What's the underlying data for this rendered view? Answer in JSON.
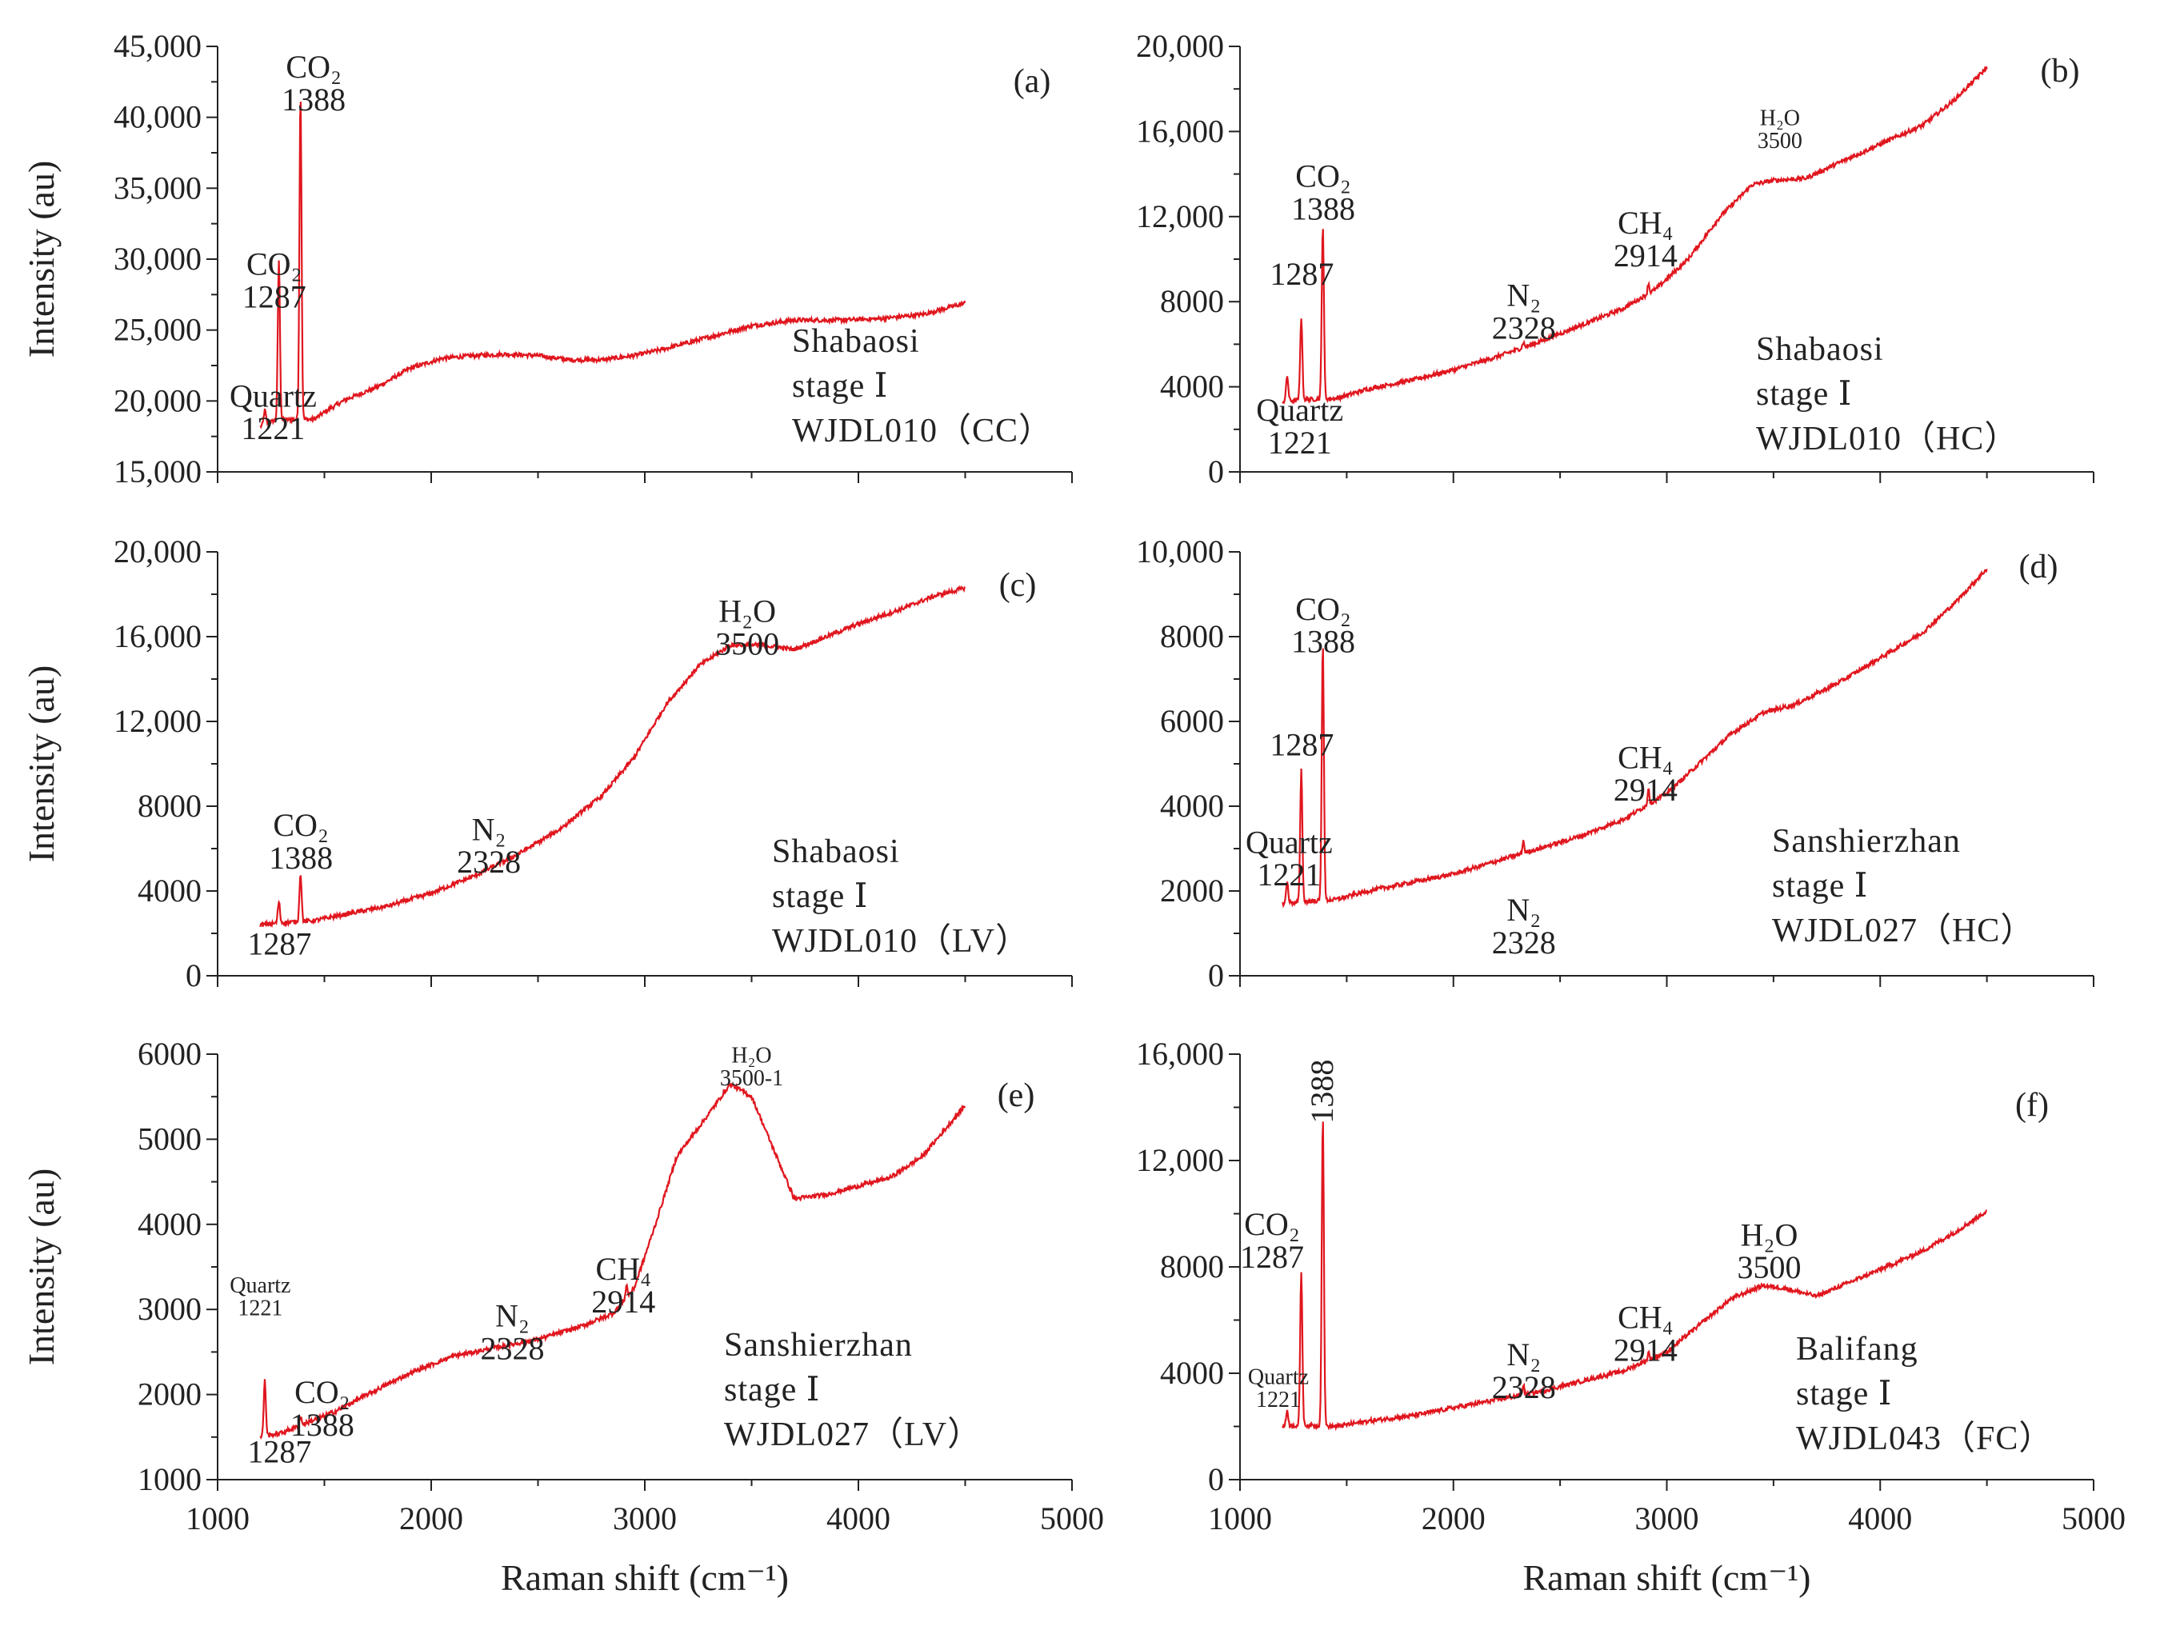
{
  "colors": {
    "spectrum": "#e0161e",
    "axis": "#222222",
    "text": "#222222"
  },
  "chart_data": [
    {
      "panel": "(a)",
      "type": "line",
      "xlim": [
        1000,
        5000
      ],
      "ylim": [
        15000,
        45000
      ],
      "yticks": [
        15000,
        20000,
        25000,
        30000,
        35000,
        40000,
        45000
      ],
      "yticklabels": [
        "15,000",
        "20,000",
        "25,000",
        "30,000",
        "35,000",
        "40,000",
        "45,000"
      ],
      "xticks": [
        1000,
        2000,
        3000,
        4000,
        5000
      ],
      "xticklabels": [],
      "ylabel": "Intensity (au)",
      "xlabel": "",
      "x_range": [
        1200,
        4500
      ],
      "baseline": [
        [
          1200,
          18200
        ],
        [
          1260,
          18600
        ],
        [
          1350,
          18700
        ],
        [
          1450,
          18700
        ],
        [
          1520,
          19400
        ],
        [
          1600,
          20100
        ],
        [
          1750,
          21000
        ],
        [
          1900,
          22300
        ],
        [
          2050,
          23000
        ],
        [
          2200,
          23200
        ],
        [
          2350,
          23300
        ],
        [
          2500,
          23200
        ],
        [
          2650,
          22900
        ],
        [
          2800,
          22900
        ],
        [
          2950,
          23200
        ],
        [
          3100,
          23700
        ],
        [
          3300,
          24500
        ],
        [
          3500,
          25300
        ],
        [
          3700,
          25700
        ],
        [
          3900,
          25700
        ],
        [
          4100,
          25800
        ],
        [
          4300,
          26100
        ],
        [
          4500,
          26900
        ]
      ],
      "peaks": [
        [
          1221,
          1000
        ],
        [
          1287,
          11300
        ],
        [
          1388,
          23000
        ]
      ],
      "annotations": [
        {
          "lines": [
            "Quartz",
            "1221"
          ],
          "at": [
            1260,
            19600
          ]
        },
        {
          "lines": [
            "CO₂",
            "1287"
          ],
          "at": [
            1265,
            28900
          ]
        },
        {
          "lines": [
            "CO₂",
            "1388"
          ],
          "at": [
            1450,
            42800
          ]
        }
      ],
      "sample": [
        "Shabaosi",
        "stage Ⅰ",
        "WJDL010（CC）"
      ]
    },
    {
      "panel": "(b)",
      "type": "line",
      "xlim": [
        1000,
        5000
      ],
      "ylim": [
        0,
        20000
      ],
      "yticks": [
        0,
        4000,
        8000,
        12000,
        16000,
        20000
      ],
      "yticklabels": [
        "0",
        "4000",
        "8000",
        "12,000",
        "16,000",
        "20,000"
      ],
      "xticks": [
        1000,
        2000,
        3000,
        4000,
        5000
      ],
      "xticklabels": [],
      "ylabel": "",
      "xlabel": "",
      "x_range": [
        1200,
        4500
      ],
      "baseline": [
        [
          1200,
          3300
        ],
        [
          1300,
          3400
        ],
        [
          1450,
          3450
        ],
        [
          1600,
          3900
        ],
        [
          1800,
          4300
        ],
        [
          2000,
          4800
        ],
        [
          2200,
          5400
        ],
        [
          2400,
          6100
        ],
        [
          2600,
          6900
        ],
        [
          2800,
          7700
        ],
        [
          2950,
          8600
        ],
        [
          3100,
          10000
        ],
        [
          3250,
          12000
        ],
        [
          3400,
          13500
        ],
        [
          3500,
          13700
        ],
        [
          3650,
          13800
        ],
        [
          3800,
          14500
        ],
        [
          4000,
          15400
        ],
        [
          4200,
          16300
        ],
        [
          4350,
          17500
        ],
        [
          4500,
          19000
        ]
      ],
      "peaks": [
        [
          1221,
          1200
        ],
        [
          1287,
          3900
        ],
        [
          1388,
          8200
        ],
        [
          2328,
          250
        ],
        [
          2914,
          500
        ]
      ],
      "annotations": [
        {
          "lines": [
            "Quartz",
            "1221"
          ],
          "at": [
            1280,
            2400
          ]
        },
        {
          "lines": [
            "1287"
          ],
          "at": [
            1290,
            8800
          ]
        },
        {
          "lines": [
            "CO₂",
            "1388"
          ],
          "at": [
            1390,
            13400
          ]
        },
        {
          "lines": [
            "N₂",
            "2328"
          ],
          "at": [
            2330,
            7800
          ]
        },
        {
          "lines": [
            "CH₄",
            "2914"
          ],
          "at": [
            2900,
            11200
          ]
        },
        {
          "lines": [
            "H₂O",
            "3500"
          ],
          "at": [
            3530,
            16300
          ],
          "small": true
        }
      ],
      "sample": [
        "Shabaosi",
        "stage Ⅰ",
        "WJDL010（HC）"
      ]
    },
    {
      "panel": "(c)",
      "type": "line",
      "xlim": [
        1000,
        5000
      ],
      "ylim": [
        0,
        20000
      ],
      "yticks": [
        0,
        4000,
        8000,
        12000,
        16000,
        20000
      ],
      "yticklabels": [
        "0",
        "4000",
        "8000",
        "12,000",
        "16,000",
        "20,000"
      ],
      "xticks": [
        1000,
        2000,
        3000,
        4000,
        5000
      ],
      "xticklabels": [],
      "ylabel": "Intensity (au)",
      "xlabel": "",
      "x_range": [
        1200,
        4500
      ],
      "baseline": [
        [
          1200,
          2400
        ],
        [
          1300,
          2500
        ],
        [
          1450,
          2600
        ],
        [
          1600,
          2900
        ],
        [
          1800,
          3300
        ],
        [
          2000,
          3900
        ],
        [
          2200,
          4700
        ],
        [
          2400,
          5700
        ],
        [
          2600,
          6900
        ],
        [
          2800,
          8500
        ],
        [
          2950,
          10300
        ],
        [
          3100,
          12800
        ],
        [
          3250,
          14600
        ],
        [
          3400,
          15600
        ],
        [
          3550,
          15600
        ],
        [
          3700,
          15400
        ],
        [
          3850,
          16000
        ],
        [
          4000,
          16600
        ],
        [
          4200,
          17300
        ],
        [
          4350,
          17900
        ],
        [
          4500,
          18300
        ]
      ],
      "peaks": [
        [
          1287,
          1000
        ],
        [
          1388,
          2300
        ]
      ],
      "annotations": [
        {
          "lines": [
            "1287"
          ],
          "at": [
            1290,
            1000
          ]
        },
        {
          "lines": [
            "CO₂",
            "1388"
          ],
          "at": [
            1390,
            6600
          ]
        },
        {
          "lines": [
            "N₂",
            "2328"
          ],
          "at": [
            2270,
            6400
          ]
        },
        {
          "lines": [
            "H₂O",
            "3500"
          ],
          "at": [
            3480,
            16700
          ]
        }
      ],
      "sample": [
        "Shabaosi",
        "stage Ⅰ",
        "WJDL010（LV）"
      ]
    },
    {
      "panel": "(d)",
      "type": "line",
      "xlim": [
        1000,
        5000
      ],
      "ylim": [
        0,
        10000
      ],
      "yticks": [
        0,
        2000,
        4000,
        6000,
        8000,
        10000
      ],
      "yticklabels": [
        "0",
        "2000",
        "4000",
        "6000",
        "8000",
        "10,000"
      ],
      "xticks": [
        1000,
        2000,
        3000,
        4000,
        5000
      ],
      "xticklabels": [],
      "ylabel": "",
      "xlabel": "",
      "x_range": [
        1200,
        4500
      ],
      "baseline": [
        [
          1200,
          1700
        ],
        [
          1300,
          1750
        ],
        [
          1450,
          1800
        ],
        [
          1600,
          2000
        ],
        [
          1800,
          2200
        ],
        [
          2000,
          2400
        ],
        [
          2200,
          2700
        ],
        [
          2400,
          3000
        ],
        [
          2600,
          3300
        ],
        [
          2800,
          3700
        ],
        [
          3000,
          4300
        ],
        [
          3150,
          5000
        ],
        [
          3300,
          5700
        ],
        [
          3450,
          6200
        ],
        [
          3600,
          6400
        ],
        [
          3800,
          6900
        ],
        [
          4000,
          7500
        ],
        [
          4200,
          8100
        ],
        [
          4350,
          8800
        ],
        [
          4500,
          9600
        ]
      ],
      "peaks": [
        [
          1221,
          500
        ],
        [
          1287,
          3100
        ],
        [
          1388,
          6100
        ],
        [
          2328,
          300
        ],
        [
          2914,
          400
        ]
      ],
      "annotations": [
        {
          "lines": [
            "Quartz",
            "1221"
          ],
          "at": [
            1230,
            2900
          ]
        },
        {
          "lines": [
            "1287"
          ],
          "at": [
            1290,
            5200
          ]
        },
        {
          "lines": [
            "CO₂",
            "1388"
          ],
          "at": [
            1390,
            8400
          ]
        },
        {
          "lines": [
            "N₂",
            "2328"
          ],
          "at": [
            2330,
            1300
          ]
        },
        {
          "lines": [
            "CH₄",
            "2914"
          ],
          "at": [
            2900,
            4900
          ]
        }
      ],
      "sample": [
        "Sanshierzhan",
        "stage Ⅰ",
        "WJDL027（HC）"
      ]
    },
    {
      "panel": "(e)",
      "type": "line",
      "xlim": [
        1000,
        5000
      ],
      "ylim": [
        1000,
        6000
      ],
      "yticks": [
        1000,
        2000,
        3000,
        4000,
        5000,
        6000
      ],
      "yticklabels": [
        "1000",
        "2000",
        "3000",
        "4000",
        "5000",
        "6000"
      ],
      "xticks": [
        1000,
        2000,
        3000,
        4000,
        5000
      ],
      "xticklabels": [
        "1000",
        "2000",
        "3000",
        "4000",
        "5000"
      ],
      "ylabel": "Intensity (au)",
      "xlabel": "Raman shift (cm⁻¹)",
      "x_range": [
        1200,
        4500
      ],
      "baseline": [
        [
          1200,
          1500
        ],
        [
          1300,
          1550
        ],
        [
          1400,
          1650
        ],
        [
          1550,
          1800
        ],
        [
          1700,
          2000
        ],
        [
          1900,
          2250
        ],
        [
          2100,
          2450
        ],
        [
          2300,
          2550
        ],
        [
          2500,
          2650
        ],
        [
          2700,
          2800
        ],
        [
          2850,
          2950
        ],
        [
          2950,
          3250
        ],
        [
          3050,
          4000
        ],
        [
          3150,
          4800
        ],
        [
          3300,
          5300
        ],
        [
          3400,
          5650
        ],
        [
          3500,
          5500
        ],
        [
          3600,
          4900
        ],
        [
          3700,
          4300
        ],
        [
          3850,
          4350
        ],
        [
          4000,
          4450
        ],
        [
          4150,
          4550
        ],
        [
          4300,
          4800
        ],
        [
          4500,
          5400
        ]
      ],
      "peaks": [
        [
          1221,
          650
        ],
        [
          1388,
          100
        ],
        [
          2914,
          150
        ]
      ],
      "annotations": [
        {
          "lines": [
            "Quartz",
            "1221"
          ],
          "at": [
            1200,
            3200
          ],
          "small": true
        },
        {
          "lines": [
            "CO₂",
            "1388"
          ],
          "at": [
            1490,
            1900
          ]
        },
        {
          "lines": [
            "1287"
          ],
          "at": [
            1290,
            1200
          ]
        },
        {
          "lines": [
            "N₂",
            "2328"
          ],
          "at": [
            2380,
            2800
          ]
        },
        {
          "lines": [
            "CH₄",
            "2914"
          ],
          "at": [
            2900,
            3350
          ]
        },
        {
          "lines": [
            "H₂O",
            "3500-1"
          ],
          "at": [
            3500,
            5900
          ],
          "small": true
        }
      ],
      "sample": [
        "Sanshierzhan",
        "stage Ⅰ",
        "WJDL027（LV）"
      ]
    },
    {
      "panel": "(f)",
      "type": "line",
      "xlim": [
        1000,
        5000
      ],
      "ylim": [
        0,
        16000
      ],
      "yticks": [
        0,
        4000,
        8000,
        12000,
        16000
      ],
      "yticklabels": [
        "0",
        "4000",
        "8000",
        "12,000",
        "16,000"
      ],
      "xticks": [
        1000,
        2000,
        3000,
        4000,
        5000
      ],
      "xticklabels": [
        "1000",
        "2000",
        "3000",
        "4000",
        "5000"
      ],
      "ylabel": "",
      "xlabel": "Raman shift (cm⁻¹)",
      "x_range": [
        1200,
        4500
      ],
      "baseline": [
        [
          1200,
          2000
        ],
        [
          1300,
          2050
        ],
        [
          1450,
          2000
        ],
        [
          1600,
          2200
        ],
        [
          1800,
          2400
        ],
        [
          2000,
          2700
        ],
        [
          2200,
          3000
        ],
        [
          2400,
          3300
        ],
        [
          2600,
          3700
        ],
        [
          2800,
          4100
        ],
        [
          3000,
          4800
        ],
        [
          3150,
          5800
        ],
        [
          3300,
          6800
        ],
        [
          3450,
          7300
        ],
        [
          3550,
          7200
        ],
        [
          3700,
          6900
        ],
        [
          3850,
          7400
        ],
        [
          4000,
          7900
        ],
        [
          4200,
          8600
        ],
        [
          4350,
          9300
        ],
        [
          4500,
          10100
        ]
      ],
      "peaks": [
        [
          1221,
          600
        ],
        [
          1287,
          5800
        ],
        [
          1388,
          11700
        ],
        [
          2328,
          400
        ],
        [
          2914,
          300
        ]
      ],
      "annotations": [
        {
          "lines": [
            "Quartz",
            "1221"
          ],
          "at": [
            1180,
            3600
          ],
          "small": true
        },
        {
          "lines": [
            "CO₂",
            "1287"
          ],
          "at": [
            1150,
            9200
          ]
        },
        {
          "lines": [
            "1388"
          ],
          "at": [
            1390,
            15800
          ],
          "rotate": true
        },
        {
          "lines": [
            "N₂",
            "2328"
          ],
          "at": [
            2330,
            4300
          ]
        },
        {
          "lines": [
            "CH₄",
            "2914"
          ],
          "at": [
            2900,
            5700
          ]
        },
        {
          "lines": [
            "H₂O",
            "3500"
          ],
          "at": [
            3480,
            8800
          ]
        }
      ],
      "sample": [
        "Balifang",
        "stage Ⅰ",
        "WJDL043（FC）"
      ]
    }
  ]
}
